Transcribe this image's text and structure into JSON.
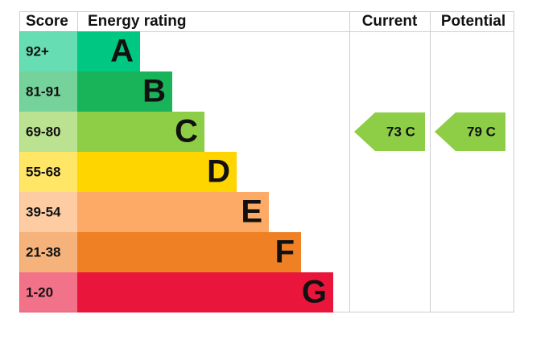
{
  "header": {
    "score": "Score",
    "rating": "Energy rating",
    "current": "Current",
    "potential": "Potential"
  },
  "bands": [
    {
      "score": "92+",
      "letter": "A",
      "color": "#00c781"
    },
    {
      "score": "81-91",
      "letter": "B",
      "color": "#19b459"
    },
    {
      "score": "69-80",
      "letter": "C",
      "color": "#8dce46"
    },
    {
      "score": "55-68",
      "letter": "D",
      "color": "#ffd500"
    },
    {
      "score": "39-54",
      "letter": "E",
      "color": "#fcaa65"
    },
    {
      "score": "21-38",
      "letter": "F",
      "color": "#ef8023"
    },
    {
      "score": "1-20",
      "letter": "G",
      "color": "#e9153b"
    }
  ],
  "current": {
    "value": 73,
    "label": "73 C"
  },
  "potential": {
    "value": 79,
    "label": "79 C"
  }
}
